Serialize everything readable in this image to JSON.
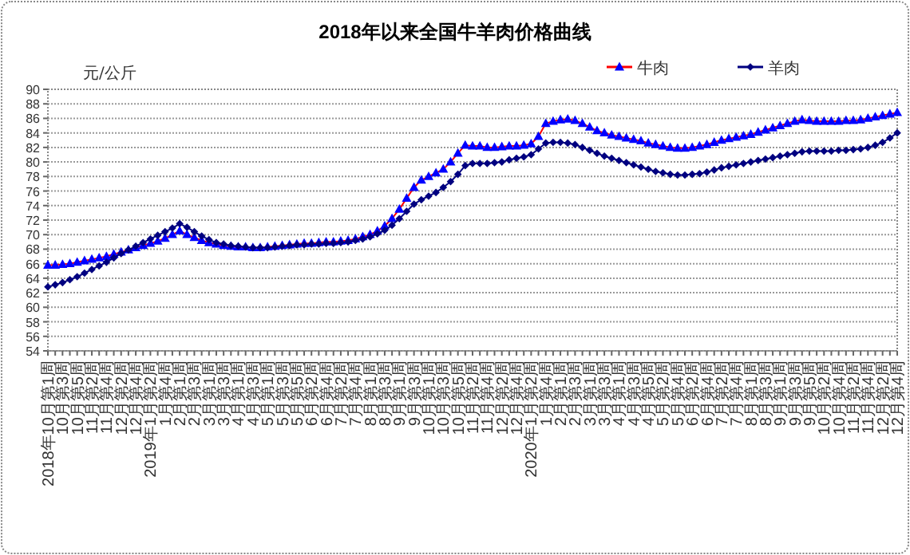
{
  "chart_data": {
    "type": "line",
    "title": "2018年以来全国牛羊肉价格曲线",
    "ylabel": "元/公斤",
    "categories": [
      "2018年10月第1周",
      null,
      "10月第3周",
      null,
      "10月第5周",
      null,
      "11月第2周",
      null,
      "11月第4周",
      null,
      "12月第2周",
      null,
      "12月第4周",
      null,
      "2019年1月第2周",
      null,
      "1月第4周",
      null,
      "2月第1周",
      null,
      "2月第3周",
      null,
      "3月第1周",
      null,
      "3月第3周",
      null,
      "4月第1周",
      null,
      "4月第3周",
      null,
      "5月第1周",
      null,
      "5月第3周",
      null,
      "5月第5周",
      null,
      "6月第2周",
      null,
      "6月第4周",
      null,
      "7月第2周",
      null,
      "7月第4周",
      null,
      "8月第1周",
      null,
      "8月第3周",
      null,
      "9月第1周",
      null,
      "9月第3周",
      null,
      "10月第1周",
      null,
      "10月第3周",
      null,
      "10月第5周",
      null,
      "11月第2周",
      null,
      "11月第4周",
      null,
      "12月第2周",
      null,
      "12月第4周",
      null,
      "2020年1月第2周",
      null,
      "1月第4周",
      null,
      "2月第1周",
      null,
      "2月第3周",
      null,
      "3月第1周",
      null,
      "3月第3周",
      null,
      "4月第1周",
      null,
      "4月第3周",
      null,
      "4月第5周",
      null,
      "5月第2周",
      null,
      "5月第4周",
      null,
      "6月第2周",
      null,
      "6月第4周",
      null,
      "7月第2周",
      null,
      "7月第4周",
      null,
      "8月第1周",
      null,
      "8月第3周",
      null,
      "9月第1周",
      null,
      "9月第3周",
      null,
      "9月第5周",
      null,
      "10月第2周",
      null,
      "10月第4周",
      null,
      "11月第2周",
      null,
      "11月第4周",
      null,
      "12月第2周",
      null,
      "12月第4周"
    ],
    "series": [
      {
        "name": "牛肉",
        "color": "#0000ff",
        "marker": "triangle",
        "values": [
          65.8,
          65.8,
          65.9,
          66.0,
          66.2,
          66.4,
          66.6,
          66.8,
          67.0,
          67.3,
          67.6,
          67.9,
          68.2,
          68.5,
          68.8,
          69.1,
          69.5,
          70.0,
          70.5,
          70.0,
          69.6,
          69.2,
          68.9,
          68.7,
          68.5,
          68.4,
          68.3,
          68.3,
          68.2,
          68.2,
          68.3,
          68.4,
          68.5,
          68.6,
          68.7,
          68.8,
          68.8,
          68.9,
          69.0,
          69.0,
          69.1,
          69.2,
          69.4,
          69.7,
          70.0,
          70.5,
          71.2,
          72.2,
          73.5,
          75.0,
          76.5,
          77.5,
          78.0,
          78.5,
          79.0,
          80.0,
          81.2,
          82.3,
          82.2,
          82.2,
          82.0,
          82.0,
          82.1,
          82.2,
          82.2,
          82.3,
          82.5,
          83.5,
          85.3,
          85.6,
          85.8,
          85.9,
          85.7,
          85.3,
          84.8,
          84.3,
          84.0,
          83.7,
          83.5,
          83.3,
          83.1,
          82.9,
          82.6,
          82.4,
          82.2,
          82.0,
          81.9,
          81.9,
          82.0,
          82.2,
          82.4,
          82.7,
          83.0,
          83.2,
          83.4,
          83.6,
          83.8,
          84.1,
          84.4,
          84.7,
          85.0,
          85.3,
          85.6,
          85.8,
          85.7,
          85.6,
          85.6,
          85.6,
          85.6,
          85.7,
          85.7,
          85.8,
          86.0,
          86.2,
          86.4,
          86.6,
          86.8
        ]
      },
      {
        "name": "羊肉",
        "color": "#000080",
        "marker": "diamond",
        "values": [
          62.8,
          63.1,
          63.4,
          63.8,
          64.2,
          64.7,
          65.2,
          65.7,
          66.2,
          66.8,
          67.4,
          67.9,
          68.4,
          68.9,
          69.4,
          69.9,
          70.4,
          70.9,
          71.5,
          71.0,
          70.4,
          69.8,
          69.3,
          68.9,
          68.7,
          68.5,
          68.4,
          68.3,
          68.2,
          68.2,
          68.2,
          68.3,
          68.4,
          68.5,
          68.6,
          68.6,
          68.7,
          68.7,
          68.8,
          68.8,
          68.9,
          69.0,
          69.2,
          69.4,
          69.7,
          70.1,
          70.6,
          71.3,
          72.2,
          73.2,
          74.2,
          74.8,
          75.3,
          75.8,
          76.5,
          77.3,
          78.3,
          79.5,
          79.8,
          79.8,
          79.8,
          79.9,
          80.0,
          80.3,
          80.5,
          80.7,
          81.0,
          81.8,
          82.6,
          82.7,
          82.7,
          82.6,
          82.4,
          82.0,
          81.6,
          81.2,
          80.8,
          80.5,
          80.2,
          79.9,
          79.6,
          79.3,
          79.0,
          78.7,
          78.5,
          78.3,
          78.2,
          78.2,
          78.3,
          78.4,
          78.6,
          78.9,
          79.2,
          79.4,
          79.6,
          79.8,
          80.0,
          80.2,
          80.4,
          80.6,
          80.8,
          81.0,
          81.2,
          81.4,
          81.5,
          81.5,
          81.5,
          81.5,
          81.6,
          81.6,
          81.7,
          81.8,
          82.0,
          82.3,
          82.7,
          83.3,
          84.0
        ]
      }
    ],
    "ylim": [
      54,
      90
    ],
    "yticks": [
      54,
      56,
      58,
      60,
      62,
      64,
      66,
      68,
      70,
      72,
      74,
      76,
      78,
      80,
      82,
      84,
      86,
      88,
      90
    ],
    "grid": "y",
    "legend": "top right",
    "line_style": "solid"
  }
}
